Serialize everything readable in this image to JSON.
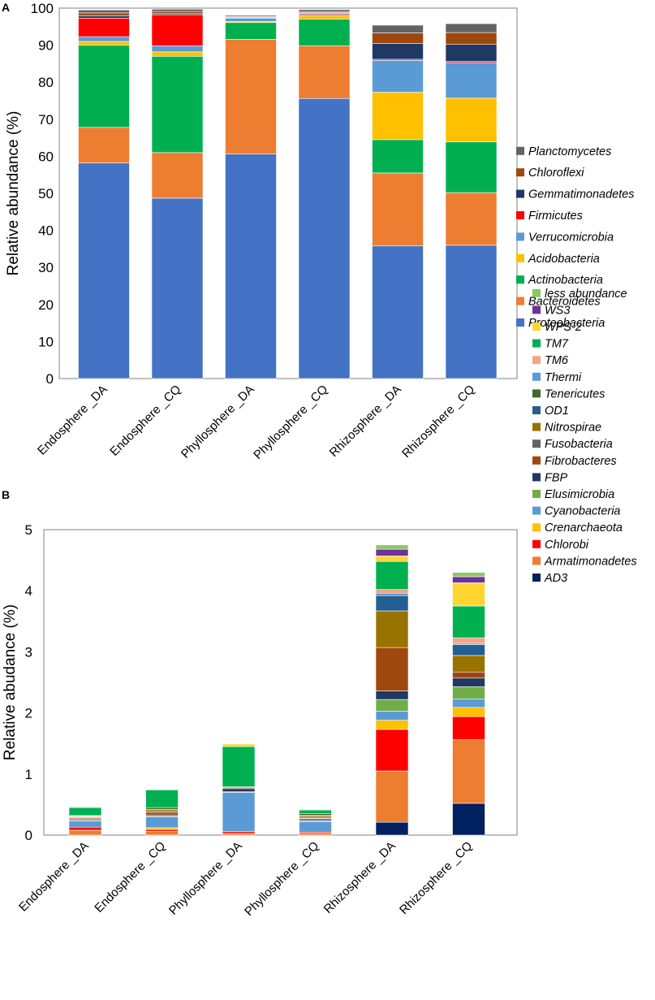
{
  "chart_data": [
    {
      "panel": "A",
      "type": "bar",
      "stacked": true,
      "title": "",
      "xlabel": "",
      "ylabel": "Relative abundance (%)",
      "ylim": [
        0,
        100
      ],
      "yticks": [
        0,
        10,
        20,
        30,
        40,
        50,
        60,
        70,
        80,
        90,
        100
      ],
      "categories": [
        "Endosphere _DA",
        "Endosphere _CQ",
        "Phyllosphere _DA",
        "Phyllosphere _CQ",
        "Rhizosphere _DA",
        "Rhizosphere _CQ"
      ],
      "series": [
        {
          "name": "Proteobacteria",
          "color": "#4472C4",
          "values": [
            58.2,
            48.7,
            60.6,
            75.6,
            35.8,
            36.0
          ]
        },
        {
          "name": "Bacteroidetes",
          "color": "#ED7D31",
          "values": [
            9.6,
            12.3,
            31.0,
            14.2,
            19.7,
            14.2
          ]
        },
        {
          "name": "Actinobacteria",
          "color": "#00B050",
          "values": [
            22.2,
            26.0,
            4.5,
            7.2,
            9.0,
            13.7
          ]
        },
        {
          "name": "Acidobacteria",
          "color": "#FFC000",
          "values": [
            1.0,
            1.2,
            0.3,
            0.9,
            12.8,
            11.8
          ]
        },
        {
          "name": "Verrucomicrobia",
          "color": "#5B9BD5",
          "values": [
            1.3,
            1.6,
            0.9,
            0.4,
            8.6,
            9.6
          ]
        },
        {
          "name": "Firmicutes",
          "color": "#FF0000",
          "values": [
            5.0,
            8.4,
            0.2,
            0.3,
            0.3,
            0.3
          ]
        },
        {
          "name": "Gemmatimonadetes",
          "color": "#203864",
          "values": [
            0.6,
            0.3,
            0.1,
            0.2,
            4.3,
            4.6
          ]
        },
        {
          "name": "Chloroflexi",
          "color": "#9E480E",
          "values": [
            0.8,
            0.6,
            0.2,
            0.3,
            2.8,
            3.2
          ]
        },
        {
          "name": "Planctomycetes",
          "color": "#636363",
          "values": [
            0.8,
            0.6,
            0.3,
            0.5,
            2.1,
            2.4
          ]
        }
      ]
    },
    {
      "panel": "B",
      "type": "bar",
      "stacked": true,
      "title": "",
      "xlabel": "",
      "ylabel": "Relative abudance (%)",
      "ylim": [
        0,
        5
      ],
      "yticks": [
        0,
        1,
        2,
        3,
        4,
        5
      ],
      "categories": [
        "Endosphere _DA",
        "Endosphere _CQ",
        "Phyllosphere _DA",
        "Phyllosphere _CQ",
        "Rhizosphere _DA",
        "Rhizosphere _CQ"
      ],
      "series": [
        {
          "name": "AD3",
          "color": "#002060",
          "values": [
            0.0,
            0.0,
            0.0,
            0.0,
            0.21,
            0.52
          ]
        },
        {
          "name": "Armatimonadetes",
          "color": "#ED7D31",
          "values": [
            0.08,
            0.06,
            0.03,
            0.03,
            0.84,
            1.04
          ]
        },
        {
          "name": "Chlorobi",
          "color": "#FF0000",
          "values": [
            0.05,
            0.03,
            0.03,
            0.02,
            0.68,
            0.38
          ]
        },
        {
          "name": "Crenarchaeota",
          "color": "#FFC000",
          "values": [
            0.0,
            0.03,
            0.0,
            0.0,
            0.15,
            0.15
          ]
        },
        {
          "name": "Cyanobacteria",
          "color": "#5B9BD5",
          "values": [
            0.1,
            0.18,
            0.64,
            0.17,
            0.15,
            0.14
          ]
        },
        {
          "name": "Elusimicrobia",
          "color": "#70AD47",
          "values": [
            0.01,
            0.01,
            0.01,
            0.01,
            0.19,
            0.2
          ]
        },
        {
          "name": "FBP",
          "color": "#203864",
          "values": [
            0.02,
            0.02,
            0.05,
            0.02,
            0.14,
            0.14
          ]
        },
        {
          "name": "Fibrobacteres",
          "color": "#9E480E",
          "values": [
            0.02,
            0.04,
            0.02,
            0.02,
            0.71,
            0.1
          ]
        },
        {
          "name": "Fusobacteria",
          "color": "#636363",
          "values": [
            0.01,
            0.02,
            0.01,
            0.01,
            0.0,
            0.0
          ]
        },
        {
          "name": "Nitrospirae",
          "color": "#997300",
          "values": [
            0.01,
            0.03,
            0.0,
            0.03,
            0.6,
            0.27
          ]
        },
        {
          "name": "OD1",
          "color": "#255E91",
          "values": [
            0.01,
            0.0,
            0.0,
            0.01,
            0.25,
            0.18
          ]
        },
        {
          "name": "Tenericutes",
          "color": "#43682B",
          "values": [
            0.01,
            0.03,
            0.0,
            0.03,
            0.0,
            0.0
          ]
        },
        {
          "name": "Thermi",
          "color": "#5B9BD5",
          "values": [
            0.0,
            0.0,
            0.0,
            0.0,
            0.04,
            0.02
          ]
        },
        {
          "name": "TM6",
          "color": "#F4A582",
          "values": [
            0.0,
            0.0,
            0.0,
            0.0,
            0.06,
            0.09
          ]
        },
        {
          "name": "TM7",
          "color": "#00B050",
          "values": [
            0.13,
            0.29,
            0.66,
            0.06,
            0.46,
            0.52
          ]
        },
        {
          "name": "WPS-2",
          "color": "#FFD530",
          "values": [
            0.0,
            0.0,
            0.04,
            0.0,
            0.09,
            0.38
          ]
        },
        {
          "name": "WS3",
          "color": "#7030A0",
          "values": [
            0.01,
            0.0,
            0.0,
            0.0,
            0.11,
            0.1
          ]
        },
        {
          "name": "less abundance",
          "color": "#8BC860",
          "values": [
            0.01,
            0.0,
            0.0,
            0.01,
            0.07,
            0.07
          ]
        }
      ]
    }
  ]
}
